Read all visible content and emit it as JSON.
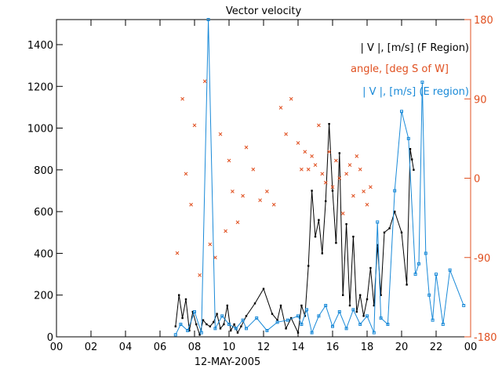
{
  "chart_data": {
    "type": "line",
    "title": "Vector velocity",
    "xlabel": "12-MAY-2005",
    "ylabel": "",
    "x_ticks": [
      "00",
      "02",
      "04",
      "06",
      "08",
      "10",
      "12",
      "14",
      "16",
      "18",
      "20",
      "22",
      "00"
    ],
    "xlim": [
      0,
      24
    ],
    "ylim": [
      0,
      1520
    ],
    "y_ticks": [
      0,
      200,
      400,
      600,
      800,
      1000,
      1200,
      1400
    ],
    "y2lim": [
      -180,
      180
    ],
    "y2_ticks": [
      -180,
      -90,
      0,
      90,
      180
    ],
    "colors": {
      "f_region": "#000000",
      "angle": "#e05020",
      "e_region": "#1a8ad8",
      "axis": "#000000",
      "right_axis": "#e05020"
    },
    "legend": [
      "| V |, [m/s] (F Region)",
      "angle, [deg S of W]",
      "| V |, [m/s] (E region)"
    ],
    "legend_placement": "top-right",
    "series": [
      {
        "name": "| V |, [m/s] (F Region)",
        "axis": "left",
        "style": "line+markers",
        "x": [
          6.9,
          7.1,
          7.3,
          7.5,
          7.7,
          7.9,
          8.1,
          8.3,
          8.5,
          8.7,
          8.9,
          9.1,
          9.3,
          9.5,
          9.7,
          9.9,
          10.1,
          10.3,
          10.5,
          10.7,
          11.0,
          11.5,
          12.0,
          12.5,
          12.8,
          13.0,
          13.3,
          13.6,
          14.0,
          14.2,
          14.4,
          14.6,
          14.8,
          15.0,
          15.2,
          15.4,
          15.6,
          15.8,
          16.0,
          16.2,
          16.4,
          16.6,
          16.8,
          17.0,
          17.2,
          17.4,
          17.6,
          17.8,
          18.0,
          18.2,
          18.4,
          18.6,
          18.8,
          19.0,
          19.3,
          19.6,
          20.0,
          20.3,
          20.5,
          20.6,
          20.7
        ],
        "y": [
          50,
          200,
          90,
          180,
          30,
          120,
          60,
          10,
          80,
          60,
          50,
          70,
          110,
          40,
          60,
          150,
          30,
          60,
          20,
          50,
          100,
          160,
          230,
          110,
          80,
          150,
          40,
          90,
          20,
          150,
          100,
          340,
          700,
          480,
          560,
          400,
          650,
          1020,
          700,
          450,
          880,
          200,
          540,
          150,
          480,
          120,
          200,
          100,
          180,
          330,
          150,
          440,
          200,
          500,
          520,
          600,
          500,
          250,
          900,
          850,
          800
        ]
      },
      {
        "name": "angle, [deg S of W]",
        "axis": "right",
        "style": "markers",
        "x": [
          7.0,
          7.3,
          7.5,
          7.8,
          8.0,
          8.3,
          8.6,
          8.9,
          9.2,
          9.5,
          9.8,
          10.0,
          10.2,
          10.5,
          10.8,
          11.0,
          11.4,
          11.8,
          12.2,
          12.6,
          13.0,
          13.3,
          13.6,
          14.0,
          14.2,
          14.4,
          14.6,
          14.8,
          15.0,
          15.2,
          15.4,
          15.6,
          15.8,
          16.0,
          16.2,
          16.4,
          16.6,
          16.8,
          17.0,
          17.2,
          17.4,
          17.6,
          17.8,
          18.0,
          18.2
        ],
        "y": [
          -85,
          90,
          5,
          -30,
          60,
          -110,
          110,
          -75,
          -90,
          50,
          -60,
          20,
          -15,
          -50,
          -20,
          35,
          10,
          -25,
          -15,
          -30,
          80,
          50,
          90,
          40,
          10,
          30,
          10,
          25,
          15,
          60,
          5,
          -5,
          30,
          -10,
          20,
          0,
          -40,
          5,
          15,
          -20,
          25,
          10,
          -15,
          -30,
          -10
        ]
      },
      {
        "name": "| V |, [m/s] (E region)",
        "axis": "left",
        "style": "line+markers",
        "x": [
          6.9,
          7.2,
          7.6,
          8.0,
          8.4,
          8.8,
          9.2,
          9.6,
          10.0,
          10.4,
          10.8,
          11.0,
          11.6,
          12.2,
          12.8,
          13.4,
          14.0,
          14.2,
          14.5,
          14.8,
          15.2,
          15.6,
          16.0,
          16.4,
          16.8,
          17.2,
          17.6,
          18.0,
          18.4,
          18.6,
          18.8,
          19.2,
          19.6,
          20.0,
          20.4,
          20.8,
          21.0,
          21.2,
          21.4,
          21.6,
          21.8,
          22.0,
          22.4,
          22.8,
          23.6
        ],
        "y": [
          10,
          60,
          30,
          120,
          20,
          1520,
          40,
          100,
          60,
          40,
          80,
          40,
          90,
          30,
          70,
          80,
          100,
          60,
          130,
          20,
          100,
          150,
          50,
          120,
          40,
          130,
          60,
          100,
          20,
          550,
          90,
          60,
          700,
          1080,
          950,
          300,
          350,
          1220,
          400,
          200,
          80,
          300,
          60,
          320,
          150
        ]
      }
    ]
  }
}
